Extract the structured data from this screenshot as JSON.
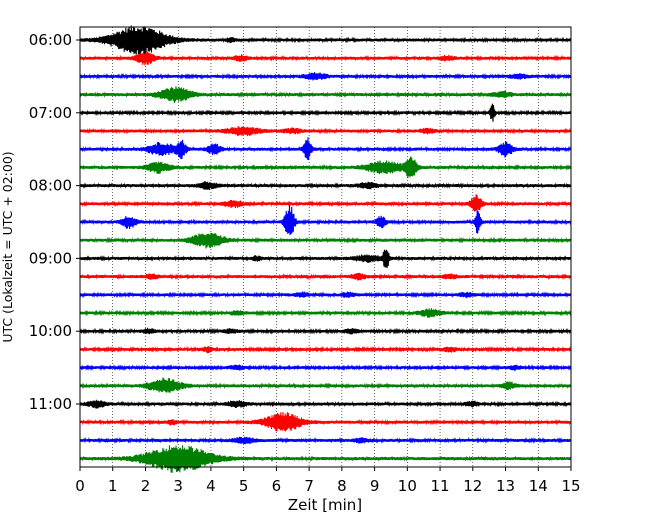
{
  "chart_data": {
    "type": "line",
    "subtype": "helicorder",
    "title": "",
    "xlabel": "Zeit  [min]",
    "ylabel": "UTC (Lokalzeit = UTC + 02:00)",
    "xlim": [
      0,
      15
    ],
    "x_ticks": [
      "0",
      "1",
      "2",
      "3",
      "4",
      "5",
      "6",
      "7",
      "8",
      "9",
      "10",
      "11",
      "12",
      "13",
      "14",
      "15"
    ],
    "y_tick_labels": [
      "06:00",
      "07:00",
      "08:00",
      "09:00",
      "10:00",
      "11:00"
    ],
    "minutes_per_line": 15,
    "start_time": "06:00",
    "grid": {
      "vertical": "dotted",
      "horizontal": false
    },
    "colors": [
      "#000000",
      "#ff0000",
      "#0000ff",
      "#008000"
    ],
    "traces": [
      {
        "start": "06:00",
        "color": "#000000",
        "amp": 1.5,
        "events": [
          {
            "t": 1.8,
            "a": 14,
            "w": 0.6
          },
          {
            "t": 4.6,
            "a": 2,
            "w": 0.1
          }
        ]
      },
      {
        "start": "06:15",
        "color": "#ff0000",
        "amp": 1.5,
        "events": [
          {
            "t": 2.0,
            "a": 6,
            "w": 0.2
          },
          {
            "t": 4.9,
            "a": 2.5,
            "w": 0.15
          },
          {
            "t": 11.2,
            "a": 2,
            "w": 0.15
          }
        ]
      },
      {
        "start": "06:30",
        "color": "#0000ff",
        "amp": 1.4,
        "events": [
          {
            "t": 7.2,
            "a": 3,
            "w": 0.25
          },
          {
            "t": 13.4,
            "a": 2,
            "w": 0.2
          }
        ]
      },
      {
        "start": "06:45",
        "color": "#008000",
        "amp": 1.5,
        "events": [
          {
            "t": 2.9,
            "a": 7,
            "w": 0.35
          },
          {
            "t": 12.9,
            "a": 2.5,
            "w": 0.2
          }
        ]
      },
      {
        "start": "07:00",
        "color": "#000000",
        "amp": 1.4,
        "events": [
          {
            "t": 12.6,
            "a": 9,
            "w": 0.05
          }
        ]
      },
      {
        "start": "07:15",
        "color": "#ff0000",
        "amp": 1.5,
        "events": [
          {
            "t": 5.0,
            "a": 4,
            "w": 0.35
          },
          {
            "t": 6.5,
            "a": 2,
            "w": 0.2
          },
          {
            "t": 10.6,
            "a": 2,
            "w": 0.15
          }
        ]
      },
      {
        "start": "07:30",
        "color": "#0000ff",
        "amp": 1.5,
        "events": [
          {
            "t": 2.5,
            "a": 6,
            "w": 0.3
          },
          {
            "t": 3.1,
            "a": 8,
            "w": 0.1
          },
          {
            "t": 4.1,
            "a": 5,
            "w": 0.15
          },
          {
            "t": 6.95,
            "a": 11,
            "w": 0.08
          },
          {
            "t": 13.0,
            "a": 7,
            "w": 0.15
          }
        ]
      },
      {
        "start": "07:45",
        "color": "#008000",
        "amp": 1.5,
        "events": [
          {
            "t": 2.4,
            "a": 5,
            "w": 0.25
          },
          {
            "t": 9.3,
            "a": 6,
            "w": 0.4
          },
          {
            "t": 10.1,
            "a": 11,
            "w": 0.12
          }
        ]
      },
      {
        "start": "08:00",
        "color": "#000000",
        "amp": 1.5,
        "events": [
          {
            "t": 3.9,
            "a": 3,
            "w": 0.2
          },
          {
            "t": 8.8,
            "a": 2.5,
            "w": 0.2
          }
        ]
      },
      {
        "start": "08:15",
        "color": "#ff0000",
        "amp": 1.5,
        "events": [
          {
            "t": 4.7,
            "a": 3,
            "w": 0.2
          },
          {
            "t": 12.1,
            "a": 8,
            "w": 0.12
          }
        ]
      },
      {
        "start": "08:30",
        "color": "#0000ff",
        "amp": 1.5,
        "events": [
          {
            "t": 1.5,
            "a": 6,
            "w": 0.15
          },
          {
            "t": 6.4,
            "a": 17,
            "w": 0.1
          },
          {
            "t": 9.2,
            "a": 6,
            "w": 0.1
          },
          {
            "t": 12.15,
            "a": 12,
            "w": 0.06
          }
        ]
      },
      {
        "start": "08:45",
        "color": "#008000",
        "amp": 1.5,
        "events": [
          {
            "t": 3.9,
            "a": 7,
            "w": 0.35
          }
        ]
      },
      {
        "start": "09:00",
        "color": "#000000",
        "amp": 1.5,
        "events": [
          {
            "t": 5.4,
            "a": 2,
            "w": 0.1
          },
          {
            "t": 8.8,
            "a": 3,
            "w": 0.3
          },
          {
            "t": 9.35,
            "a": 11,
            "w": 0.06
          }
        ]
      },
      {
        "start": "09:15",
        "color": "#ff0000",
        "amp": 1.5,
        "events": [
          {
            "t": 2.2,
            "a": 2,
            "w": 0.15
          },
          {
            "t": 8.5,
            "a": 2.5,
            "w": 0.15
          },
          {
            "t": 11.3,
            "a": 2,
            "w": 0.15
          }
        ]
      },
      {
        "start": "09:30",
        "color": "#0000ff",
        "amp": 1.4,
        "events": [
          {
            "t": 6.8,
            "a": 2,
            "w": 0.15
          },
          {
            "t": 8.2,
            "a": 2,
            "w": 0.15
          },
          {
            "t": 11.8,
            "a": 2,
            "w": 0.15
          }
        ]
      },
      {
        "start": "09:45",
        "color": "#008000",
        "amp": 1.4,
        "events": [
          {
            "t": 4.8,
            "a": 2,
            "w": 0.15
          },
          {
            "t": 10.7,
            "a": 3.5,
            "w": 0.25
          }
        ]
      },
      {
        "start": "10:00",
        "color": "#000000",
        "amp": 1.4,
        "events": [
          {
            "t": 2.1,
            "a": 2,
            "w": 0.15
          },
          {
            "t": 4.6,
            "a": 2,
            "w": 0.15
          },
          {
            "t": 8.3,
            "a": 2,
            "w": 0.15
          }
        ]
      },
      {
        "start": "10:15",
        "color": "#ff0000",
        "amp": 1.4,
        "events": [
          {
            "t": 3.9,
            "a": 2.5,
            "w": 0.1
          },
          {
            "t": 11.3,
            "a": 2,
            "w": 0.15
          }
        ]
      },
      {
        "start": "10:30",
        "color": "#0000ff",
        "amp": 1.4,
        "events": [
          {
            "t": 4.8,
            "a": 2,
            "w": 0.15
          },
          {
            "t": 13.3,
            "a": 2,
            "w": 0.15
          }
        ]
      },
      {
        "start": "10:45",
        "color": "#008000",
        "amp": 1.5,
        "events": [
          {
            "t": 2.6,
            "a": 7,
            "w": 0.35
          },
          {
            "t": 13.1,
            "a": 3,
            "w": 0.15
          }
        ]
      },
      {
        "start": "11:00",
        "color": "#000000",
        "amp": 1.5,
        "events": [
          {
            "t": 0.5,
            "a": 3,
            "w": 0.2
          },
          {
            "t": 4.8,
            "a": 3,
            "w": 0.2
          },
          {
            "t": 12.0,
            "a": 2,
            "w": 0.15
          }
        ]
      },
      {
        "start": "11:15",
        "color": "#ff0000",
        "amp": 1.5,
        "events": [
          {
            "t": 6.2,
            "a": 9,
            "w": 0.4
          },
          {
            "t": 2.8,
            "a": 2,
            "w": 0.1
          }
        ]
      },
      {
        "start": "11:30",
        "color": "#0000ff",
        "amp": 1.5,
        "events": [
          {
            "t": 5.0,
            "a": 2.5,
            "w": 0.25
          },
          {
            "t": 8.6,
            "a": 2,
            "w": 0.15
          }
        ]
      },
      {
        "start": "11:45",
        "color": "#008000",
        "amp": 1.6,
        "events": [
          {
            "t": 3.0,
            "a": 13,
            "w": 0.7
          }
        ]
      }
    ]
  }
}
